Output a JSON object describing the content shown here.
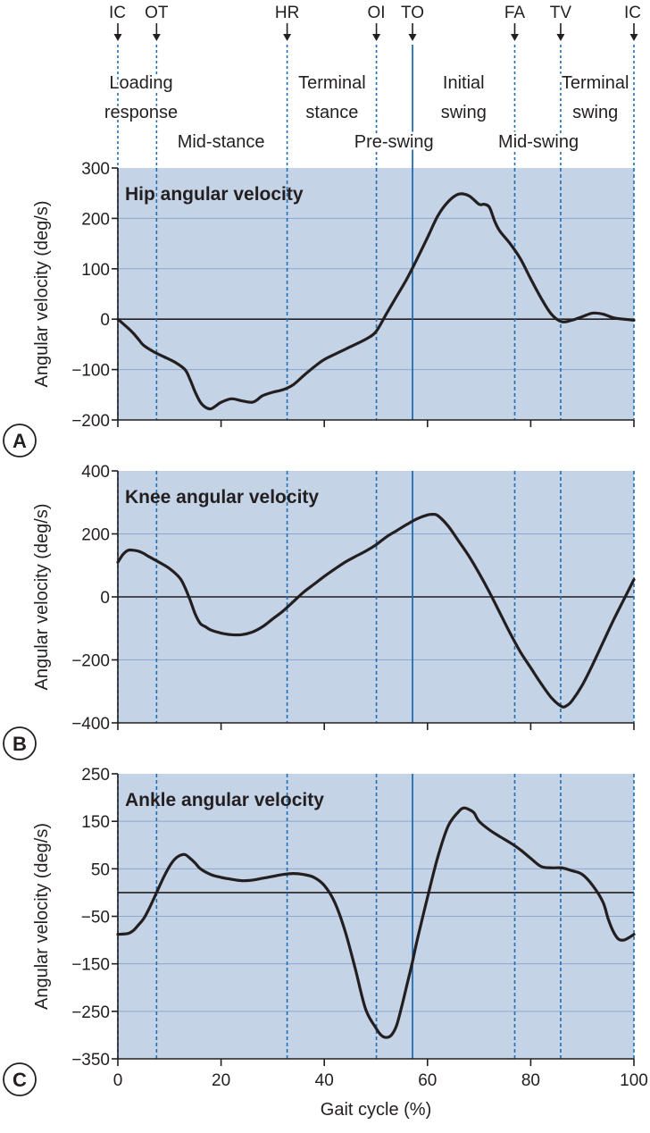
{
  "chart_data": {
    "type": "line",
    "xlabel": "Gait cycle (%)",
    "xlim": [
      0,
      100
    ],
    "xticks": [
      0,
      20,
      40,
      60,
      80,
      100
    ],
    "events": [
      {
        "label": "IC",
        "x": 0,
        "style": "dashed"
      },
      {
        "label": "OT",
        "x": 7.5,
        "style": "dashed"
      },
      {
        "label": "HR",
        "x": 32.8,
        "style": "dashed"
      },
      {
        "label": "OI",
        "x": 50.1,
        "style": "dashed"
      },
      {
        "label": "TO",
        "x": 57.1,
        "style": "solid"
      },
      {
        "label": "FA",
        "x": 76.9,
        "style": "dashed"
      },
      {
        "label": "TV",
        "x": 85.8,
        "style": "dashed"
      },
      {
        "label": "IC",
        "x": 100,
        "style": "dashed"
      }
    ],
    "phases": [
      {
        "lines": [
          "Loading",
          "response"
        ],
        "center_x": 4.5,
        "row": "high"
      },
      {
        "lines": [
          "Mid-stance"
        ],
        "center_x": 20,
        "row": "low"
      },
      {
        "lines": [
          "Terminal",
          "stance"
        ],
        "center_x": 41.5,
        "row": "high"
      },
      {
        "lines": [
          "Pre-swing"
        ],
        "center_x": 53.5,
        "row": "low"
      },
      {
        "lines": [
          "Initial",
          "swing"
        ],
        "center_x": 67,
        "row": "high"
      },
      {
        "lines": [
          "Mid-swing"
        ],
        "center_x": 81.5,
        "row": "low"
      },
      {
        "lines": [
          "Terminal",
          "swing"
        ],
        "center_x": 92.5,
        "row": "high"
      }
    ],
    "panels": [
      {
        "letter": "A",
        "title": "Hip angular velocity",
        "ylabel": "Angular velocity (deg/s)",
        "ylim": [
          -200,
          300
        ],
        "yticks": [
          -200,
          -100,
          0,
          100,
          200,
          300
        ],
        "x": [
          0,
          2,
          3,
          4,
          5,
          7,
          9,
          11,
          13,
          14,
          15,
          16,
          17,
          18,
          19,
          20,
          22,
          24,
          26,
          27,
          28,
          30,
          32,
          34,
          36,
          38,
          40,
          43,
          45,
          48,
          50,
          52,
          54,
          56,
          58,
          60,
          62,
          64,
          66,
          68,
          70,
          71,
          72,
          73,
          74,
          76,
          78,
          80,
          82,
          84,
          86,
          88,
          90,
          92,
          94,
          96,
          98,
          100
        ],
        "y": [
          0,
          -18,
          -28,
          -40,
          -52,
          -65,
          -75,
          -85,
          -100,
          -120,
          -145,
          -165,
          -175,
          -178,
          -172,
          -165,
          -158,
          -162,
          -165,
          -160,
          -152,
          -145,
          -140,
          -130,
          -112,
          -95,
          -80,
          -65,
          -55,
          -40,
          -25,
          10,
          45,
          80,
          120,
          162,
          205,
          233,
          248,
          245,
          228,
          228,
          222,
          195,
          175,
          150,
          120,
          80,
          42,
          10,
          -5,
          -2,
          5,
          12,
          10,
          3,
          0,
          -2
        ]
      },
      {
        "letter": "B",
        "title": "Knee angular velocity",
        "ylabel": "Angular velocity (deg/s)",
        "ylim": [
          -400,
          400
        ],
        "yticks": [
          -400,
          -200,
          0,
          200,
          400
        ],
        "x": [
          0,
          1,
          2,
          3,
          4,
          5,
          6,
          8,
          10,
          12,
          13,
          14,
          15,
          16,
          17,
          18,
          20,
          22,
          24,
          26,
          28,
          30,
          32,
          34,
          36,
          38,
          40,
          42,
          44,
          46,
          48,
          50,
          52,
          54,
          56,
          58,
          60,
          61,
          62,
          64,
          66,
          68,
          70,
          72,
          74,
          76,
          78,
          80,
          82,
          84,
          86,
          87,
          88,
          90,
          92,
          94,
          96,
          98,
          100
        ],
        "y": [
          110,
          135,
          148,
          148,
          145,
          138,
          128,
          110,
          90,
          60,
          30,
          -10,
          -55,
          -85,
          -95,
          -105,
          -115,
          -120,
          -120,
          -112,
          -95,
          -70,
          -45,
          -15,
          15,
          40,
          65,
          88,
          110,
          128,
          145,
          165,
          190,
          210,
          230,
          248,
          260,
          262,
          258,
          225,
          178,
          130,
          75,
          15,
          -50,
          -115,
          -175,
          -225,
          -275,
          -320,
          -348,
          -345,
          -330,
          -280,
          -215,
          -145,
          -75,
          -10,
          55
        ]
      },
      {
        "letter": "C",
        "title": "Ankle angular velocity",
        "ylabel": "Angular velocity (deg/s)",
        "ylim": [
          -350,
          250
        ],
        "yticks": [
          -350,
          -250,
          -150,
          -50,
          50,
          150,
          250
        ],
        "x": [
          0,
          2,
          3,
          4,
          5,
          6,
          7,
          8,
          9,
          10,
          11,
          12,
          13,
          14,
          15,
          16,
          18,
          20,
          22,
          24,
          26,
          28,
          30,
          32,
          34,
          36,
          38,
          40,
          42,
          44,
          46,
          48,
          50,
          51,
          52,
          53,
          54,
          55,
          56,
          57,
          58,
          60,
          62,
          64,
          66,
          67,
          68,
          69,
          70,
          72,
          74,
          76,
          78,
          80,
          82,
          84,
          86,
          88,
          90,
          92,
          94,
          95,
          96,
          97,
          98,
          99,
          100
        ],
        "y": [
          -88,
          -86,
          -80,
          -68,
          -55,
          -35,
          -12,
          12,
          35,
          55,
          70,
          78,
          80,
          72,
          62,
          50,
          38,
          32,
          28,
          25,
          26,
          30,
          34,
          38,
          40,
          38,
          32,
          15,
          -20,
          -80,
          -160,
          -245,
          -285,
          -300,
          -305,
          -300,
          -280,
          -240,
          -195,
          -150,
          -100,
          -10,
          75,
          140,
          170,
          178,
          175,
          168,
          150,
          132,
          118,
          105,
          90,
          72,
          55,
          52,
          52,
          46,
          38,
          15,
          -20,
          -55,
          -82,
          -98,
          -100,
          -95,
          -88
        ]
      }
    ]
  }
}
